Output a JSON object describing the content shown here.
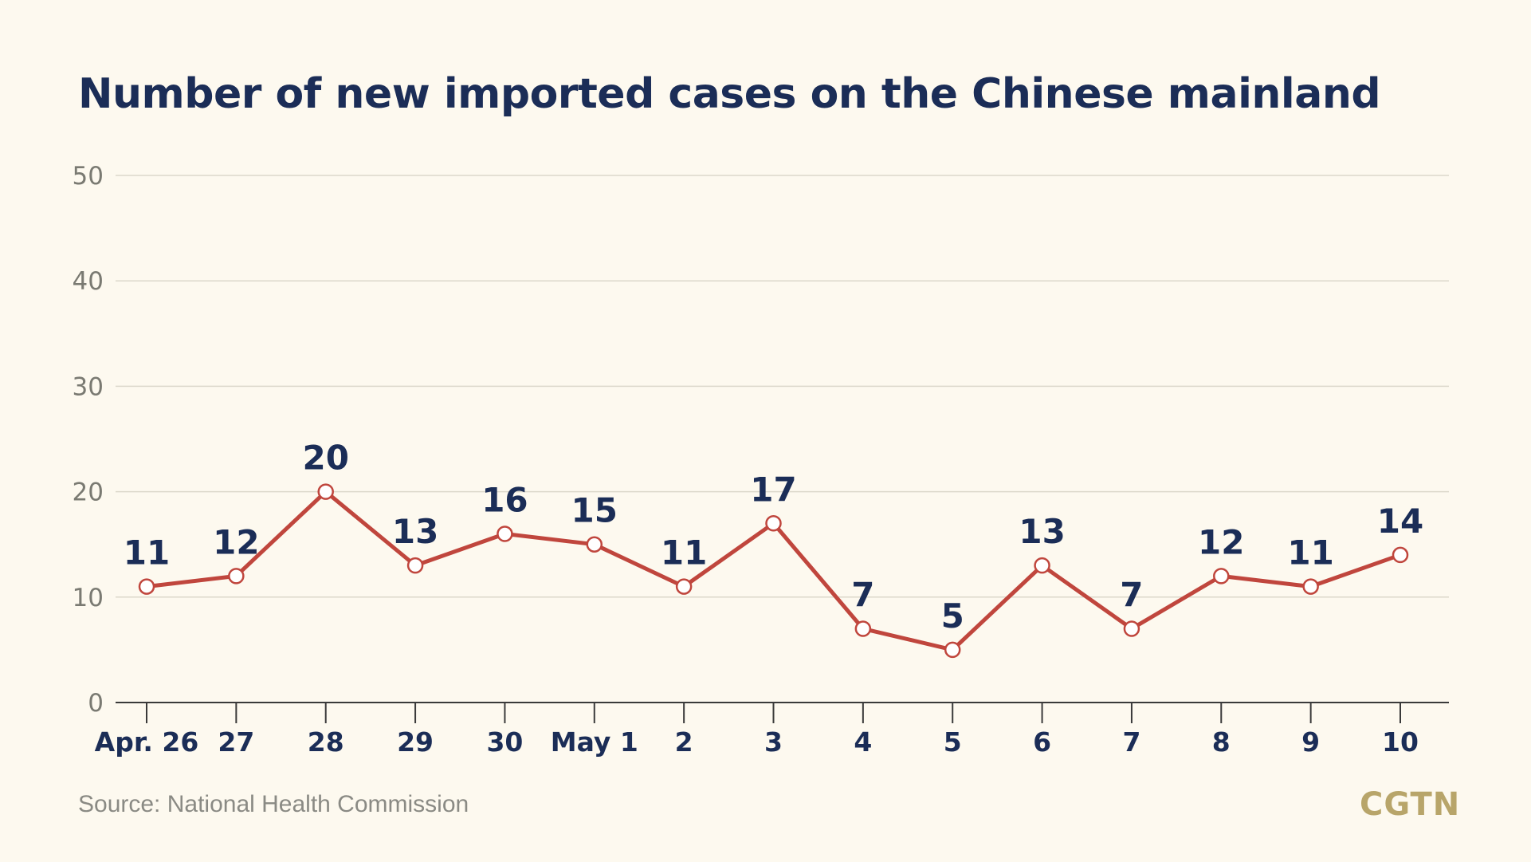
{
  "colors": {
    "background": "#fdf9ef",
    "title": "#1b2d57",
    "line": "#c0463d",
    "label": "#1b2d57",
    "axis_text": "#7a7a72",
    "brand": "#b8a56a"
  },
  "source": "Source: National Health Commission",
  "brand": "CGTN",
  "chart_data": {
    "type": "line",
    "title": "Number of new imported cases on the Chinese mainland",
    "xlabel": "",
    "ylabel": "",
    "ylim": [
      0,
      50
    ],
    "yticks": [
      0,
      10,
      20,
      30,
      40,
      50
    ],
    "grid": true,
    "categories": [
      "Apr. 26",
      "27",
      "28",
      "29",
      "30",
      "May 1",
      "2",
      "3",
      "4",
      "5",
      "6",
      "7",
      "8",
      "9",
      "10"
    ],
    "series": [
      {
        "values": [
          11,
          12,
          20,
          13,
          16,
          15,
          11,
          17,
          7,
          5,
          13,
          7,
          12,
          11,
          14
        ]
      }
    ]
  }
}
